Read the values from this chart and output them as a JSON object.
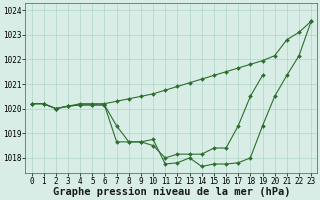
{
  "hours": [
    0,
    1,
    2,
    3,
    4,
    5,
    6,
    7,
    8,
    9,
    10,
    11,
    12,
    13,
    14,
    15,
    16,
    17,
    18,
    19,
    20,
    21,
    22,
    23
  ],
  "line1_y": [
    1020.2,
    1020.2,
    1020.0,
    1020.1,
    1020.2,
    1020.2,
    1020.2,
    1020.3,
    1020.4,
    1020.5,
    1020.6,
    1020.75,
    1020.9,
    1021.05,
    1021.2,
    1021.35,
    1021.5,
    1021.65,
    1021.8,
    1021.95,
    1022.15,
    1022.8,
    1023.1,
    1023.55
  ],
  "line2_y": [
    1020.2,
    1020.2,
    1020.0,
    1020.1,
    1020.15,
    1020.15,
    1020.15,
    1019.3,
    1018.65,
    1018.65,
    1018.5,
    1018.0,
    1018.15,
    1018.15,
    1018.15,
    1018.4,
    1018.4,
    1019.3,
    1020.5,
    1021.35,
    null,
    null,
    null,
    null
  ],
  "line3_y": [
    1020.2,
    1020.2,
    1020.0,
    1020.1,
    1020.15,
    1020.15,
    1020.15,
    1018.65,
    1018.65,
    1018.65,
    1018.75,
    1017.75,
    1017.8,
    1018.0,
    1017.65,
    1017.75,
    1017.75,
    1017.8,
    1018.0,
    1019.3,
    1020.5,
    1021.35,
    1022.15,
    1023.55
  ],
  "bg_color": "#d8ede6",
  "grid_color": "#b0d4c8",
  "line_color": "#2d6e2d",
  "marker": "D",
  "marker_size": 2.0,
  "line_width": 0.8,
  "xlabel": "Graphe pression niveau de la mer (hPa)",
  "ylim": [
    1017.4,
    1024.3
  ],
  "yticks": [
    1018,
    1019,
    1020,
    1021,
    1022,
    1023,
    1024
  ],
  "xticks": [
    0,
    1,
    2,
    3,
    4,
    5,
    6,
    7,
    8,
    9,
    10,
    11,
    12,
    13,
    14,
    15,
    16,
    17,
    18,
    19,
    20,
    21,
    22,
    23
  ],
  "tick_label_fontsize": 5.5,
  "xlabel_fontsize": 7.5
}
